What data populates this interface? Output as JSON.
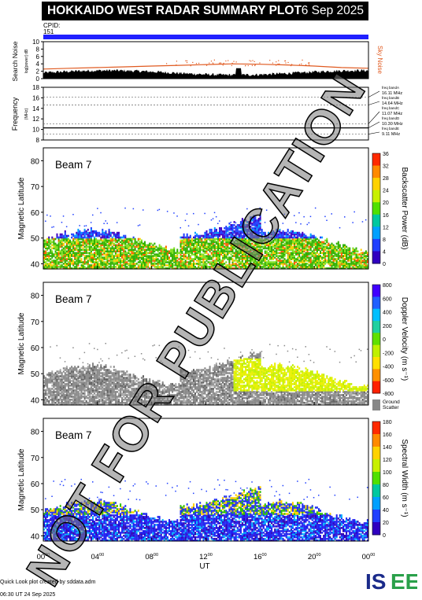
{
  "header": {
    "title": "HOKKAIDO WEST RADAR SUMMARY PLOT",
    "date": "6 Sep 2025",
    "cpid_label": "CPID:",
    "cpid_value": "151"
  },
  "watermark": "NOT FOR PUBLICATION",
  "footer": {
    "line1": "Quick Look plot created by sddata.adm",
    "line2": "06:30 UT 24 Sep 2025"
  },
  "logo": {
    "text": "ISEE",
    "colors": [
      "#1a2a8a",
      "#2aa04a"
    ]
  },
  "colorbars": {
    "power": {
      "label": "Backscatter Power (dB)",
      "ticks": [
        "36",
        "32",
        "28",
        "24",
        "20",
        "16",
        "12",
        "8",
        "4",
        "0"
      ]
    },
    "velocity": {
      "label": "Doppler Velocity (m s⁻¹)",
      "ticks": [
        "800",
        "600",
        "400",
        "200",
        "0",
        "-200",
        "-400",
        "-600",
        "-800"
      ],
      "ground_label": "Ground Scatter"
    },
    "width": {
      "label": "Spectral Width (m s⁻¹)",
      "ticks": [
        "180",
        "160",
        "140",
        "120",
        "100",
        "80",
        "60",
        "40",
        "20",
        "0"
      ]
    }
  },
  "chart_data": [
    {
      "type": "line",
      "name": "noise",
      "ylabel": "Search Noise",
      "ylabel_sub": "log[power] dB",
      "right_label": "Sky Noise",
      "ylim": [
        0,
        10
      ],
      "yticks": [
        "0",
        "2",
        "4",
        "6",
        "8",
        "10"
      ],
      "x": [
        0,
        2,
        4,
        6,
        8,
        10,
        12,
        14,
        16,
        18,
        20,
        22,
        24
      ],
      "series": [
        {
          "values": [
            2.6,
            2.8,
            3.0,
            3.2,
            3.4,
            3.6,
            3.8,
            4.0,
            3.9,
            3.7,
            3.4,
            3.0,
            2.8
          ]
        }
      ]
    },
    {
      "type": "line",
      "name": "frequency",
      "ylabel": "Frequency",
      "ylabel_sub": "(MHz)",
      "ylim": [
        8,
        18
      ],
      "yticks": [
        "8",
        "10",
        "12",
        "14",
        "16",
        "18"
      ],
      "bands": [
        {
          "label": "freq bandA",
          "value": "16.11 MHz",
          "f": 16.11
        },
        {
          "label": "freq bandB",
          "value": "14.64 MHz",
          "f": 14.64
        },
        {
          "label": "freq bandC",
          "value": "11.07 MHz",
          "f": 11.07
        },
        {
          "label": "freq bandD",
          "value": "10.30 MHz",
          "f": 10.3
        },
        {
          "label": "freq bandE",
          "value": "9.11 MHz",
          "f": 9.11
        }
      ],
      "x": [
        0,
        24
      ],
      "series": [
        {
          "values": [
            10.3,
            10.3
          ]
        }
      ]
    },
    {
      "type": "heatmap",
      "beam_label": "Beam  7",
      "ylabel": "Magnetic Latitude",
      "ylim": [
        38,
        85
      ],
      "yticks": [
        "40",
        "50",
        "60",
        "70",
        "80"
      ],
      "scale": "power"
    },
    {
      "type": "heatmap",
      "beam_label": "Beam  7",
      "ylabel": "Magnetic Latitude",
      "ylim": [
        38,
        85
      ],
      "yticks": [
        "40",
        "50",
        "60",
        "70",
        "80"
      ],
      "scale": "velocity"
    },
    {
      "type": "heatmap",
      "beam_label": "Beam  7",
      "ylabel": "Magnetic Latitude",
      "ylim": [
        38,
        85
      ],
      "yticks": [
        "40",
        "50",
        "60",
        "70",
        "80"
      ],
      "scale": "width"
    }
  ],
  "xaxis": {
    "label": "UT",
    "ticks": [
      {
        "h": "00",
        "m": "00"
      },
      {
        "h": "04",
        "m": "00"
      },
      {
        "h": "08",
        "m": "00"
      },
      {
        "h": "12",
        "m": "00"
      },
      {
        "h": "16",
        "m": "00"
      },
      {
        "h": "20",
        "m": "00"
      },
      {
        "h": "00",
        "m": "00"
      }
    ]
  }
}
